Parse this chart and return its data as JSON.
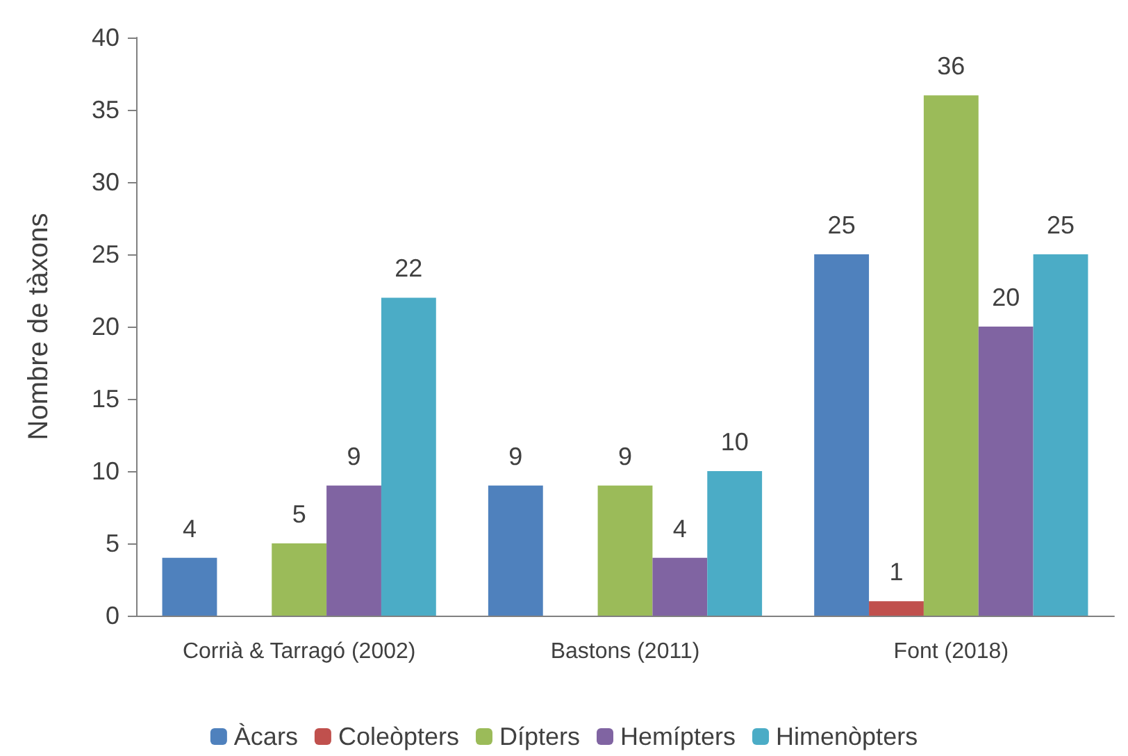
{
  "chart_data": {
    "type": "bar",
    "ylabel": "Nombre de tàxons",
    "categories": [
      "Corrià & Tarragó (2002)",
      "Bastons (2011)",
      "Font (2018)"
    ],
    "series": [
      {
        "name": "Àcars",
        "color": "#4f81bd",
        "values": [
          4,
          9,
          25
        ]
      },
      {
        "name": "Coleòpters",
        "color": "#c0504d",
        "values": [
          null,
          null,
          1
        ]
      },
      {
        "name": "Dípters",
        "color": "#9bbb59",
        "values": [
          5,
          9,
          36
        ]
      },
      {
        "name": "Hemípters",
        "color": "#8064a2",
        "values": [
          9,
          4,
          20
        ]
      },
      {
        "name": "Himenòpters",
        "color": "#4bacc6",
        "values": [
          22,
          10,
          25
        ]
      }
    ],
    "ylim": [
      0,
      40
    ],
    "yticks": [
      0,
      5,
      10,
      15,
      20,
      25,
      30,
      35,
      40
    ],
    "data_labels": true,
    "legend": "bottom",
    "grid": false
  }
}
